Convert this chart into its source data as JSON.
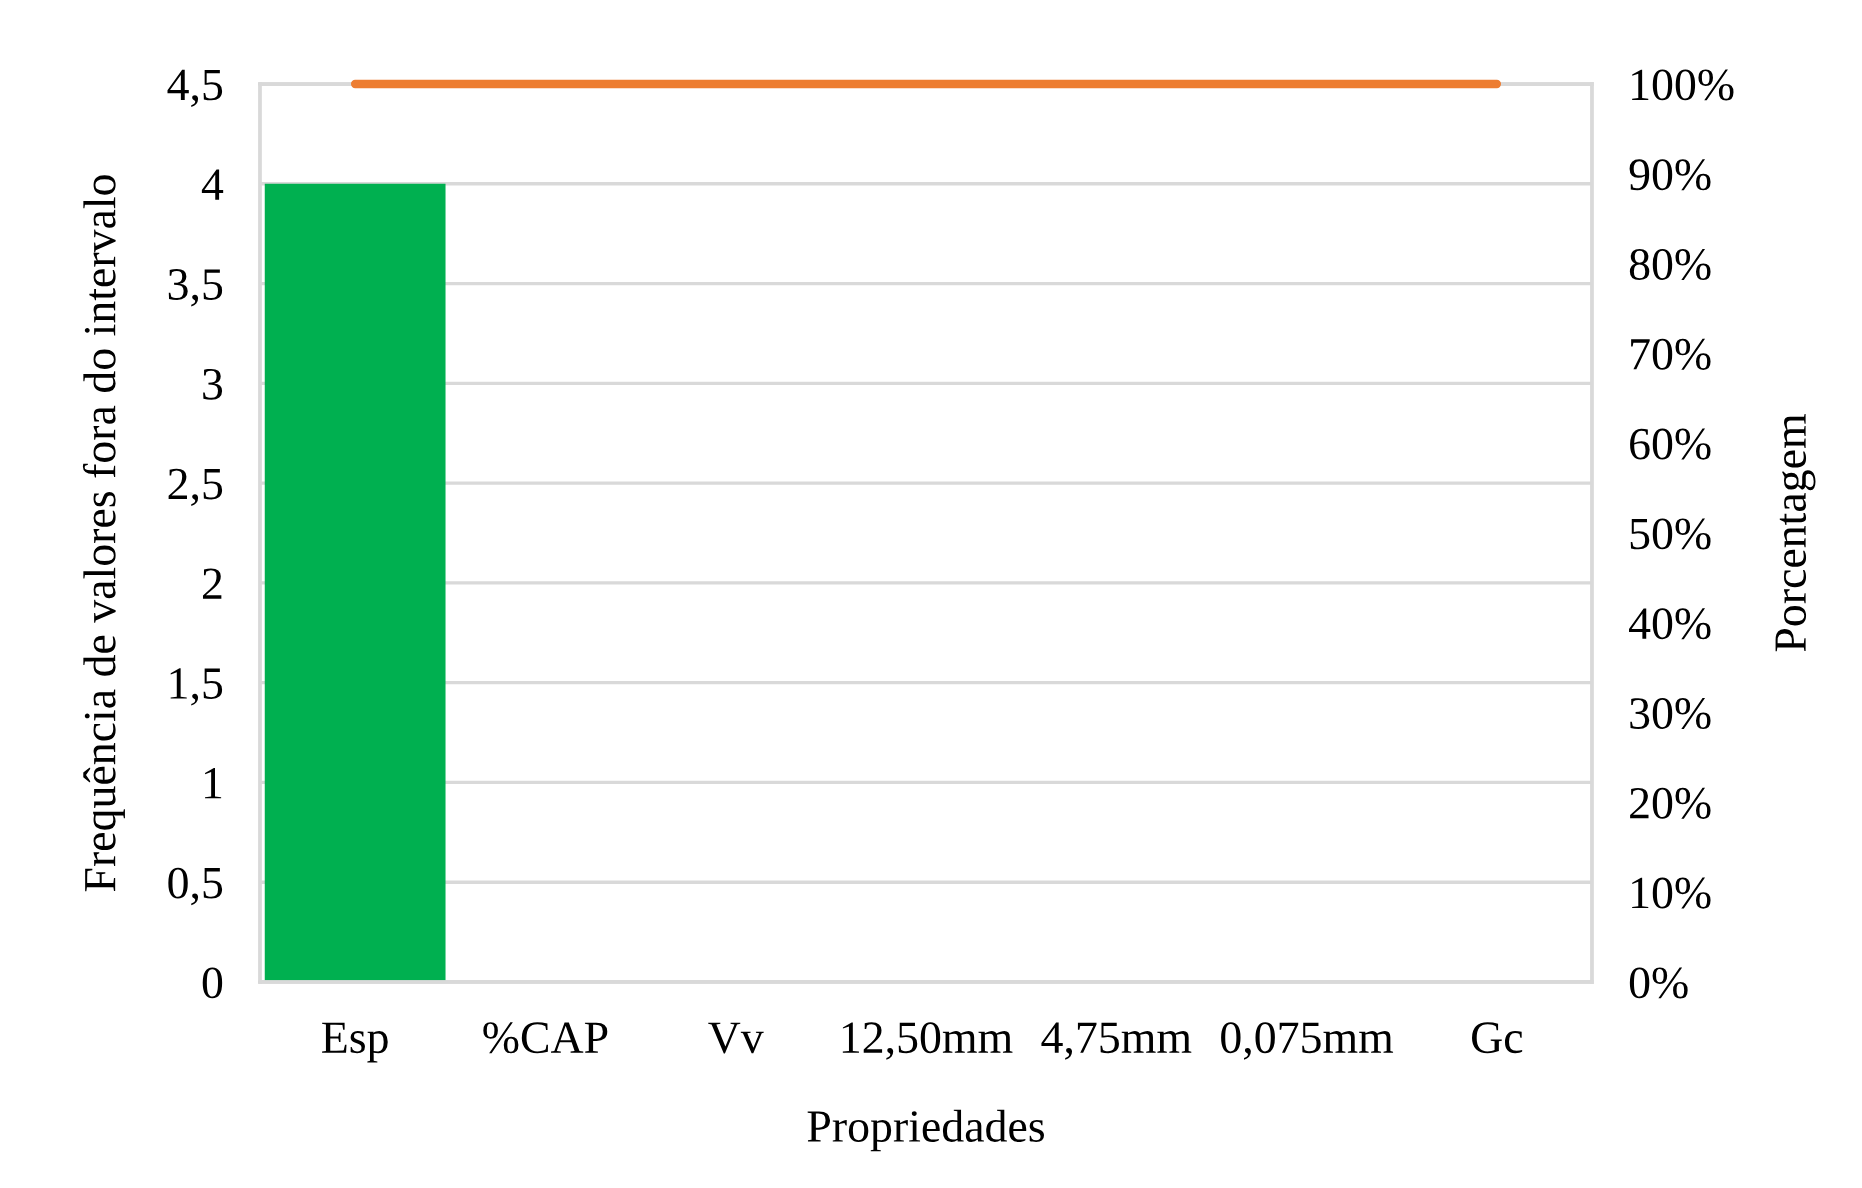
{
  "chart_data": {
    "type": "bar",
    "xlabel": "Propriedades",
    "ylabel": "Frequência de valores fora do intervalo",
    "y2label": "Porcentagem",
    "categories": [
      "Esp",
      "%CAP",
      "Vv",
      "12,50mm",
      "4,75mm",
      "0,075mm",
      "Gc"
    ],
    "series": [
      {
        "color": "#00b050",
        "values": [
          4,
          0,
          0,
          0,
          0,
          0,
          0
        ]
      },
      {
        "type": "line",
        "axis": "y2",
        "color": "#ed7d31",
        "values": [
          100,
          100,
          100,
          100,
          100,
          100,
          100
        ]
      }
    ],
    "ylim": [
      0,
      4.5
    ],
    "yticks": [
      0,
      {
        "value": 0.5,
        "label": "0,5"
      },
      1,
      {
        "value": 1.5,
        "label": "1,5"
      },
      2,
      {
        "value": 2.5,
        "label": "2,5"
      },
      3,
      {
        "value": 3.5,
        "label": "3,5"
      },
      4,
      {
        "value": 4.5,
        "label": "4,5"
      }
    ],
    "y2lim": [
      0,
      100
    ],
    "y2ticks": [
      {
        "value": 0,
        "label": "0%"
      },
      {
        "value": 10,
        "label": "10%"
      },
      {
        "value": 20,
        "label": "20%"
      },
      {
        "value": 30,
        "label": "30%"
      },
      {
        "value": 40,
        "label": "40%"
      },
      {
        "value": 50,
        "label": "50%"
      },
      {
        "value": 60,
        "label": "60%"
      },
      {
        "value": 70,
        "label": "70%"
      },
      {
        "value": 80,
        "label": "80%"
      },
      {
        "value": 90,
        "label": "90%"
      },
      {
        "value": 100,
        "label": "100%"
      }
    ],
    "grid": "y",
    "line_style": "solid"
  }
}
